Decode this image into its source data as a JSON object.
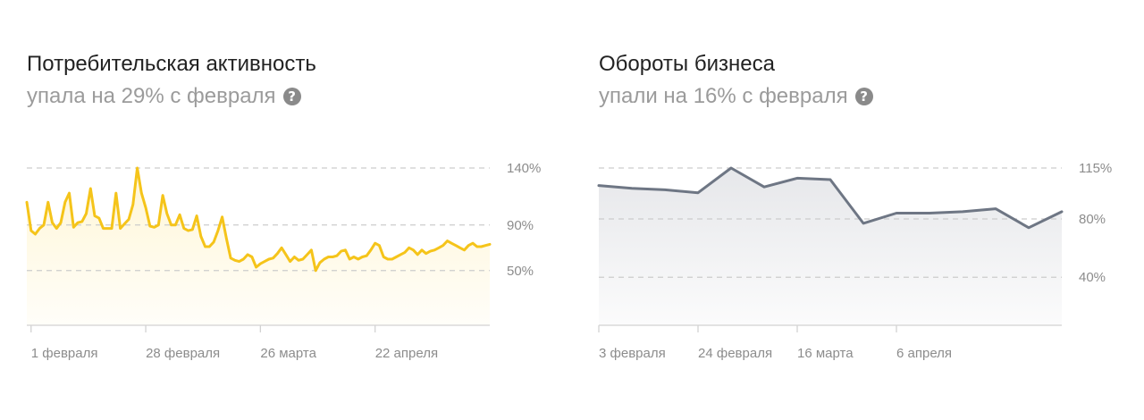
{
  "chart_data": [
    {
      "type": "area",
      "title": "Потребительская активность",
      "subtitle": "упала на 29% с февраля",
      "help_icon": "question-circle-icon",
      "color": "#f5c41a",
      "fill_color": "#fff6d6",
      "y_ticks": [
        {
          "value": 140,
          "label": "140%"
        },
        {
          "value": 90,
          "label": "90%"
        },
        {
          "value": 50,
          "label": "50%"
        }
      ],
      "ylim": [
        2,
        140
      ],
      "x_ticks": [
        {
          "x": 1,
          "label": "1 февраля"
        },
        {
          "x": 28,
          "label": "28 февраля"
        },
        {
          "x": 55,
          "label": "26 марта"
        },
        {
          "x": 82,
          "label": "22 апреля"
        }
      ],
      "xlim": [
        0,
        109
      ],
      "grid": true,
      "series": [
        {
          "values": [
            110,
            85,
            82,
            87,
            90,
            110,
            92,
            87,
            92,
            110,
            118,
            88,
            92,
            93,
            100,
            122,
            98,
            96,
            87,
            87,
            87,
            118,
            87,
            91,
            95,
            108,
            140,
            118,
            105,
            89,
            88,
            90,
            116,
            100,
            90,
            90,
            99,
            87,
            85,
            86,
            98,
            80,
            71,
            71,
            75,
            85,
            97,
            78,
            61,
            59,
            58,
            60,
            64,
            62,
            53,
            56,
            58,
            60,
            61,
            65,
            70,
            64,
            58,
            62,
            59,
            60,
            64,
            68,
            50,
            57,
            60,
            62,
            62,
            63,
            67,
            68,
            60,
            62,
            60,
            62,
            63,
            68,
            74,
            72,
            62,
            60,
            60,
            62,
            64,
            66,
            70,
            68,
            64,
            68,
            65,
            67,
            68,
            70,
            72,
            76,
            74,
            72,
            70,
            68,
            72,
            74,
            71,
            71,
            72,
            73
          ]
        }
      ]
    },
    {
      "type": "area",
      "title": "Обороты бизнеса",
      "subtitle": "упали на 16% с февраля",
      "help_icon": "question-circle-icon",
      "color": "#6e7684",
      "fill_color": "#e6e7ea",
      "y_ticks": [
        {
          "value": 115,
          "label": "115%"
        },
        {
          "value": 80,
          "label": "80%"
        },
        {
          "value": 40,
          "label": "40%"
        }
      ],
      "ylim": [
        7,
        115
      ],
      "x_ticks": [
        {
          "x": 0,
          "label": "3 февраля"
        },
        {
          "x": 3,
          "label": "24 февраля"
        },
        {
          "x": 6,
          "label": "16 марта"
        },
        {
          "x": 9,
          "label": "6 апреля"
        }
      ],
      "xlim": [
        0,
        14
      ],
      "grid": true,
      "series": [
        {
          "values": [
            103,
            101,
            100,
            98,
            115,
            102,
            108,
            107,
            77,
            84,
            84,
            85,
            87,
            74,
            85
          ]
        }
      ]
    }
  ]
}
